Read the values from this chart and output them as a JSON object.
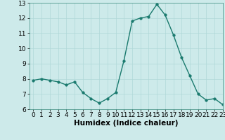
{
  "x": [
    0,
    1,
    2,
    3,
    4,
    5,
    6,
    7,
    8,
    9,
    10,
    11,
    12,
    13,
    14,
    15,
    16,
    17,
    18,
    19,
    20,
    21,
    22,
    23
  ],
  "y": [
    7.9,
    8.0,
    7.9,
    7.8,
    7.6,
    7.8,
    7.1,
    6.7,
    6.4,
    6.7,
    7.1,
    9.2,
    11.8,
    12.0,
    12.1,
    12.9,
    12.2,
    10.9,
    9.4,
    8.2,
    7.0,
    6.6,
    6.7,
    6.3
  ],
  "line_color": "#1a7a6e",
  "marker_color": "#1a7a6e",
  "bg_color": "#cdeaea",
  "grid_color": "#b0d8d8",
  "xlabel": "Humidex (Indice chaleur)",
  "ylim": [
    6,
    13
  ],
  "xlim": [
    -0.5,
    23
  ],
  "yticks": [
    6,
    7,
    8,
    9,
    10,
    11,
    12,
    13
  ],
  "xticks": [
    0,
    1,
    2,
    3,
    4,
    5,
    6,
    7,
    8,
    9,
    10,
    11,
    12,
    13,
    14,
    15,
    16,
    17,
    18,
    19,
    20,
    21,
    22,
    23
  ],
  "xlabel_fontsize": 7.5,
  "tick_fontsize": 6.5,
  "marker_size": 2.5,
  "line_width": 1.0
}
